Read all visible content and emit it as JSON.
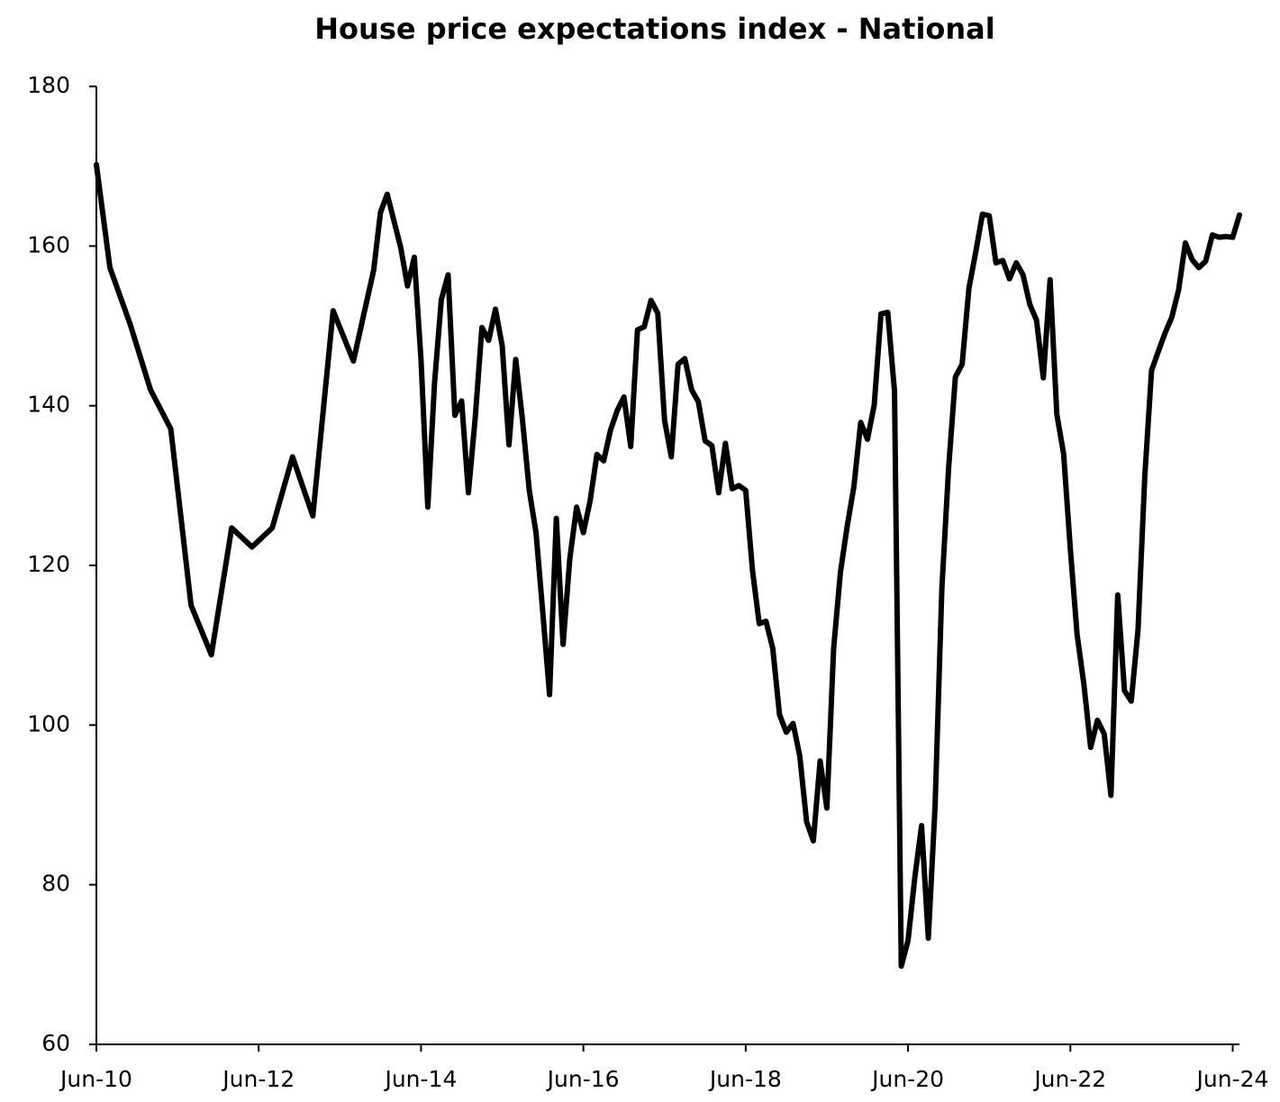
{
  "chart_data": {
    "type": "line",
    "title": "House price expectations index - National",
    "x": [
      "2010-06",
      "2010-08",
      "2010-11",
      "2011-02",
      "2011-05",
      "2011-08",
      "2011-11",
      "2012-02",
      "2012-05",
      "2012-08",
      "2012-11",
      "2013-02",
      "2013-05",
      "2013-08",
      "2013-11",
      "2013-12",
      "2014-01",
      "2014-03",
      "2014-04",
      "2014-05",
      "2014-06",
      "2014-07",
      "2014-08",
      "2014-09",
      "2014-10",
      "2014-11",
      "2014-12",
      "2015-01",
      "2015-02",
      "2015-03",
      "2015-04",
      "2015-05",
      "2015-06",
      "2015-07",
      "2015-08",
      "2015-09",
      "2015-10",
      "2015-11",
      "2015-12",
      "2016-01",
      "2016-02",
      "2016-03",
      "2016-04",
      "2016-05",
      "2016-06",
      "2016-07",
      "2016-08",
      "2016-09",
      "2016-10",
      "2016-11",
      "2016-12",
      "2017-01",
      "2017-02",
      "2017-03",
      "2017-04",
      "2017-05",
      "2017-06",
      "2017-07",
      "2017-08",
      "2017-09",
      "2017-10",
      "2017-11",
      "2017-12",
      "2018-01",
      "2018-02",
      "2018-03",
      "2018-04",
      "2018-05",
      "2018-06",
      "2018-07",
      "2018-08",
      "2018-09",
      "2018-10",
      "2018-11",
      "2018-12",
      "2019-01",
      "2019-02",
      "2019-03",
      "2019-04",
      "2019-05",
      "2019-06",
      "2019-07",
      "2019-08",
      "2019-09",
      "2019-10",
      "2019-11",
      "2019-12",
      "2020-01",
      "2020-02",
      "2020-03",
      "2020-04",
      "2020-05",
      "2020-06",
      "2020-07",
      "2020-08",
      "2020-09",
      "2020-10",
      "2020-11",
      "2020-12",
      "2021-01",
      "2021-02",
      "2021-03",
      "2021-04",
      "2021-05",
      "2021-06",
      "2021-07",
      "2021-08",
      "2021-09",
      "2021-10",
      "2021-11",
      "2021-12",
      "2022-01",
      "2022-02",
      "2022-03",
      "2022-04",
      "2022-05",
      "2022-06",
      "2022-07",
      "2022-08",
      "2022-09",
      "2022-10",
      "2022-11",
      "2022-12",
      "2023-01",
      "2023-02",
      "2023-03",
      "2023-04",
      "2023-05",
      "2023-06",
      "2023-07",
      "2023-08",
      "2023-09",
      "2023-10",
      "2023-11",
      "2023-12",
      "2024-01",
      "2024-02",
      "2024-03",
      "2024-04",
      "2024-05",
      "2024-06",
      "2024-07"
    ],
    "values": [
      170.2,
      157.3,
      150.2,
      142,
      137.1,
      115,
      108.8,
      124.7,
      122.3,
      124.7,
      133.6,
      126.2,
      151.9,
      145.6,
      157,
      164.2,
      166.5,
      159.8,
      155,
      158.6,
      145.7,
      127.3,
      142.9,
      153.3,
      156.4,
      138.8,
      140.6,
      129.1,
      138.4,
      149.8,
      148.2,
      152.1,
      147.5,
      135.1,
      145.8,
      138.2,
      129.4,
      124.1,
      114.1,
      103.8,
      125.9,
      110.1,
      120.9,
      127.3,
      124.1,
      128.1,
      133.9,
      133.1,
      136.9,
      139.4,
      141.1,
      134.9,
      149.5,
      149.9,
      153.2,
      151.6,
      138.2,
      133.6,
      145.2,
      145.9,
      142,
      140.5,
      135.6,
      135,
      129.1,
      135.3,
      129.6,
      130,
      129.4,
      119.4,
      112.7,
      113,
      109.6,
      101.3,
      99.1,
      100.2,
      96.1,
      87.9,
      85.5,
      95.5,
      89.6,
      109.6,
      119.1,
      124.9,
      129.9,
      137.9,
      135.8,
      140.1,
      151.5,
      151.7,
      141.8,
      69.8,
      73,
      80.9,
      87.4,
      73.3,
      89.9,
      117.1,
      132.2,
      143.6,
      145.2,
      154.7,
      159.2,
      164,
      163.8,
      157.9,
      158.2,
      155.9,
      157.9,
      156.4,
      152.7,
      150.7,
      143.5,
      155.8,
      138.9,
      134,
      122,
      111.3,
      105.1,
      97.2,
      100.6,
      98.9,
      91.2,
      116.3,
      104.3,
      103,
      111.9,
      131.1,
      144.4,
      146.8,
      149.1,
      151.1,
      154.5,
      160.4,
      158.3,
      157.3,
      158.1,
      161.4,
      161.1,
      161.2,
      161.1,
      163.9
    ],
    "color": "#000000",
    "xlim": [
      "2010-06",
      "2024-07"
    ],
    "xticks": [
      {
        "value": "2010-06",
        "label": "Jun-10"
      },
      {
        "value": "2012-06",
        "label": "Jun-12"
      },
      {
        "value": "2014-06",
        "label": "Jun-14"
      },
      {
        "value": "2016-06",
        "label": "Jun-16"
      },
      {
        "value": "2018-06",
        "label": "Jun-18"
      },
      {
        "value": "2020-06",
        "label": "Jun-20"
      },
      {
        "value": "2022-06",
        "label": "Jun-22"
      },
      {
        "value": "2024-06",
        "label": "Jun-24"
      }
    ],
    "ylim": [
      60,
      180
    ],
    "yticks": [
      60,
      80,
      100,
      120,
      140,
      160,
      180
    ],
    "grid": false
  }
}
